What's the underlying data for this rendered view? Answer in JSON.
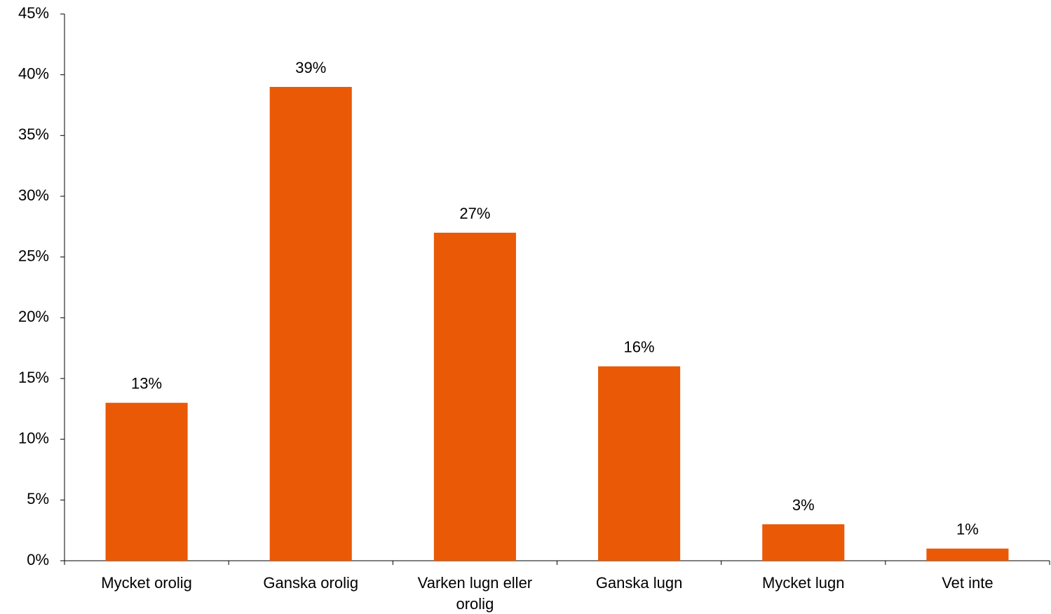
{
  "chart_data": {
    "type": "bar",
    "categories": [
      "Mycket orolig",
      "Ganska orolig",
      "Varken lugn eller orolig",
      "Ganska lugn",
      "Mycket lugn",
      "Vet inte"
    ],
    "values": [
      13,
      39,
      27,
      16,
      3,
      1
    ],
    "value_labels": [
      "13%",
      "39%",
      "27%",
      "16%",
      "3%",
      "1%"
    ],
    "color": "#ea5906",
    "ylim": [
      0,
      45
    ],
    "yticks": [
      {
        "value": 0,
        "label": "0%"
      },
      {
        "value": 5,
        "label": "5%"
      },
      {
        "value": 10,
        "label": "10%"
      },
      {
        "value": 15,
        "label": "15%"
      },
      {
        "value": 20,
        "label": "20%"
      },
      {
        "value": 25,
        "label": "25%"
      },
      {
        "value": 30,
        "label": "30%"
      },
      {
        "value": 35,
        "label": "35%"
      },
      {
        "value": 40,
        "label": "40%"
      },
      {
        "value": 45,
        "label": "45%"
      }
    ],
    "grid": false
  }
}
